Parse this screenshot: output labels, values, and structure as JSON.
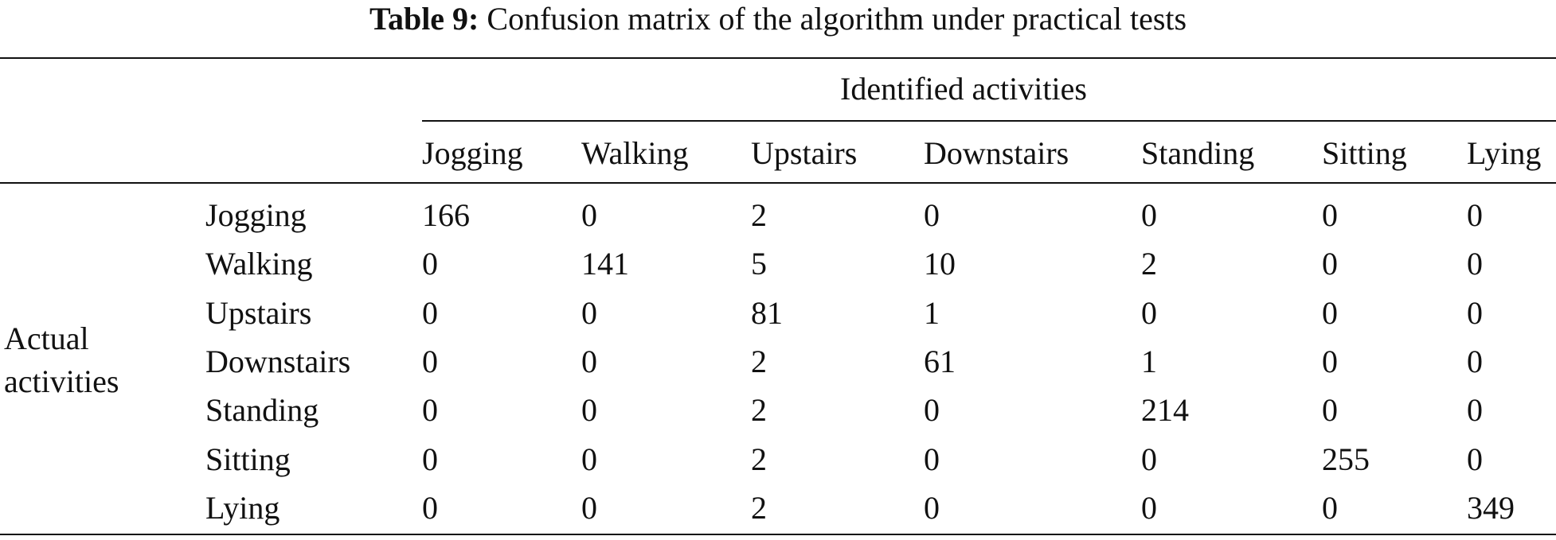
{
  "caption": {
    "label": "Table 9:",
    "text": "Confusion matrix of the algorithm under practical tests"
  },
  "header": {
    "group_label": "Identified activities",
    "columns": [
      "Jogging",
      "Walking",
      "Upstairs",
      "Downstairs",
      "Standing",
      "Sitting",
      "Lying"
    ]
  },
  "stub": {
    "line1": "Actual",
    "line2": "activities"
  },
  "rows": [
    {
      "label": "Jogging",
      "values": [
        "166",
        "0",
        "2",
        "0",
        "0",
        "0",
        "0"
      ]
    },
    {
      "label": "Walking",
      "values": [
        "0",
        "141",
        "5",
        "10",
        "2",
        "0",
        "0"
      ]
    },
    {
      "label": "Upstairs",
      "values": [
        "0",
        "0",
        "81",
        "1",
        "0",
        "0",
        "0"
      ]
    },
    {
      "label": "Downstairs",
      "values": [
        "0",
        "0",
        "2",
        "61",
        "1",
        "0",
        "0"
      ]
    },
    {
      "label": "Standing",
      "values": [
        "0",
        "0",
        "2",
        "0",
        "214",
        "0",
        "0"
      ]
    },
    {
      "label": "Sitting",
      "values": [
        "0",
        "0",
        "2",
        "0",
        "0",
        "255",
        "0"
      ]
    },
    {
      "label": "Lying",
      "values": [
        "0",
        "0",
        "2",
        "0",
        "0",
        "0",
        "349"
      ]
    }
  ]
}
